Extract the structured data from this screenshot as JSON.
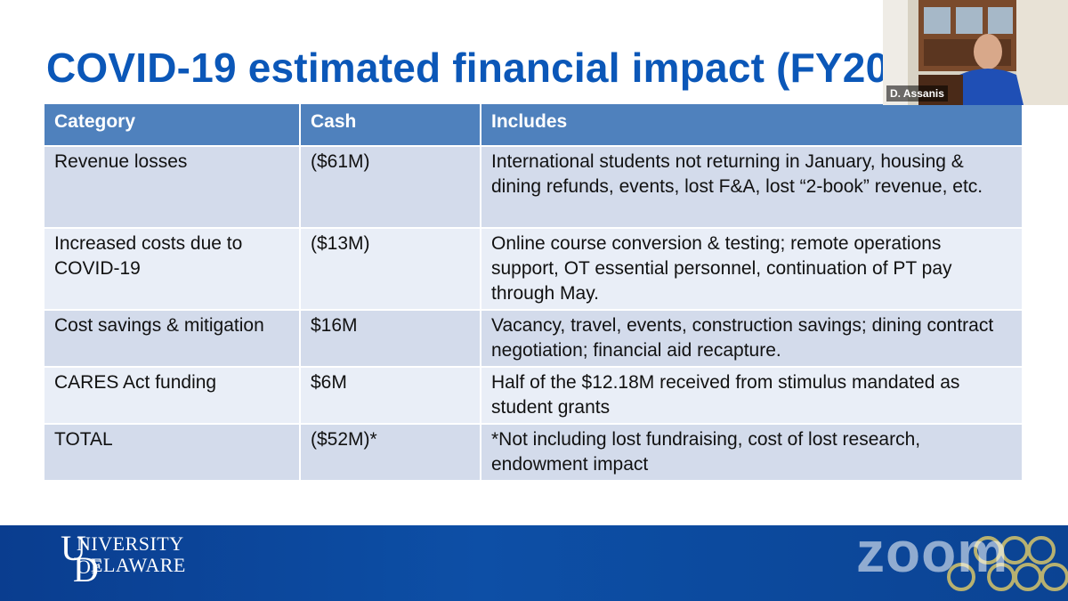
{
  "slide": {
    "title": "COVID-19 estimated financial impact (FY20",
    "title_color": "#0b57b8"
  },
  "table": {
    "headers": [
      "Category",
      "Cash",
      "Includes"
    ],
    "header_color": "#4f81bd",
    "rows": [
      {
        "category": "Revenue losses",
        "cash": "($61M)",
        "includes": "International students not returning in January, housing & dining refunds, events, lost F&A, lost “2-book” revenue, etc."
      },
      {
        "category": "Increased costs due to COVID-19",
        "cash": "($13M)",
        "includes": "Online course conversion & testing; remote operations support, OT essential personnel, continuation of PT pay through May."
      },
      {
        "category": "Cost savings & mitigation",
        "cash": "$16M",
        "includes": "Vacancy, travel, events, construction savings; dining contract negotiation; financial aid recapture."
      },
      {
        "category": "CARES Act funding",
        "cash": "$6M",
        "includes": "Half of the $12.18M received from stimulus mandated as student grants"
      },
      {
        "category": "TOTAL",
        "cash": "($52M)*",
        "includes": "*Not including lost fundraising, cost of lost research, endowment impact"
      }
    ],
    "negative_color": "#e8321f"
  },
  "footer": {
    "logo_text_line1": "NIVERSITY OF",
    "logo_text_line2": "ELAWARE",
    "logo_letter_u": "U",
    "logo_letter_d": "D",
    "watermark": "zoom"
  },
  "video": {
    "participant_name": "D. Assanis"
  }
}
